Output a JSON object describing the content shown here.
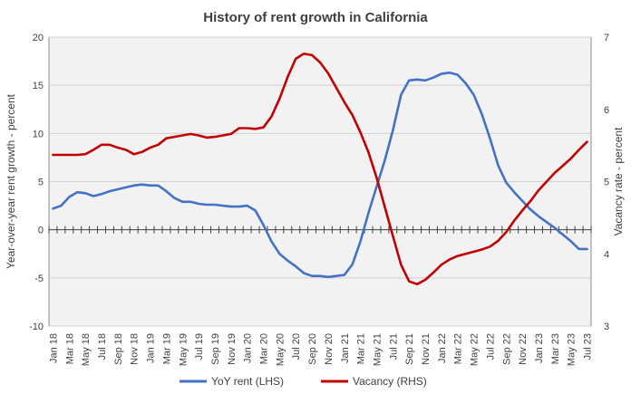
{
  "chart_data": {
    "type": "line",
    "title": "History of rent growth in California",
    "ylabel": "Year-over-year rent growth - percent",
    "y2label": "Vacancy rate - percent",
    "ylim": [
      -10,
      20
    ],
    "y2lim": [
      3,
      7
    ],
    "yticks": [
      "20",
      "15",
      "10",
      "5",
      "0",
      "-5",
      "-10"
    ],
    "y2ticks": [
      "7",
      "6",
      "5",
      "4",
      "3"
    ],
    "x": [
      "Jan 18",
      "Feb 18",
      "Mar 18",
      "Apr 18",
      "May 18",
      "Jun 18",
      "Jul 18",
      "Aug 18",
      "Sep 18",
      "Oct 18",
      "Nov 18",
      "Dec 18",
      "Jan 19",
      "Feb 19",
      "Mar 19",
      "Apr 19",
      "May 19",
      "Jun 19",
      "Jul 19",
      "Aug 19",
      "Sep 19",
      "Oct 19",
      "Nov 19",
      "Dec 19",
      "Jan 20",
      "Feb 20",
      "Mar 20",
      "Apr 20",
      "May 20",
      "Jun 20",
      "Jul 20",
      "Aug 20",
      "Sep 20",
      "Oct 20",
      "Nov 20",
      "Dec 20",
      "Jan 21",
      "Feb 21",
      "Mar 21",
      "Apr 21",
      "May 21",
      "Jun 21",
      "Jul 21",
      "Aug 21",
      "Sep 21",
      "Oct 21",
      "Nov 21",
      "Dec 21",
      "Jan 22",
      "Feb 22",
      "Mar 22",
      "Apr 22",
      "May 22",
      "Jun 22",
      "Jul 22",
      "Aug 22",
      "Sep 22",
      "Oct 22",
      "Nov 22",
      "Dec 22",
      "Jan 23",
      "Feb 23",
      "Mar 23",
      "Apr 23",
      "May 23",
      "Jun 23",
      "Jul 23"
    ],
    "xtick_labels": [
      "Jan 18",
      "Mar 18",
      "May 18",
      "Jul 18",
      "Sep 18",
      "Nov 18",
      "Jan 19",
      "Mar 19",
      "May 19",
      "Jul 19",
      "Sep 19",
      "Nov 19",
      "Jan 20",
      "Mar 20",
      "May 20",
      "Jul 20",
      "Sep 20",
      "Nov 20",
      "Jan 21",
      "Mar 21",
      "May 21",
      "Jul 21",
      "Sep 21",
      "Nov 21",
      "Jan 22",
      "Mar 22",
      "May 22",
      "Jul 22",
      "Sep 22",
      "Nov 22",
      "Jan 23",
      "Mar 23",
      "May 23",
      "Jul 23"
    ],
    "series": [
      {
        "name": "YoY rent (LHS)",
        "axis": "left",
        "color": "#4472c4",
        "values": [
          2.2,
          2.5,
          3.4,
          3.9,
          3.8,
          3.5,
          3.7,
          4.0,
          4.2,
          4.4,
          4.6,
          4.7,
          4.6,
          4.6,
          4.0,
          3.3,
          2.9,
          2.9,
          2.7,
          2.6,
          2.6,
          2.5,
          2.4,
          2.4,
          2.5,
          2.0,
          0.5,
          -1.2,
          -2.5,
          -3.2,
          -3.8,
          -4.5,
          -4.8,
          -4.8,
          -4.9,
          -4.8,
          -4.7,
          -3.6,
          -1.2,
          1.8,
          4.5,
          7.2,
          10.3,
          14.0,
          15.5,
          15.6,
          15.5,
          15.8,
          16.2,
          16.3,
          16.1,
          15.2,
          14.0,
          12.0,
          9.5,
          6.7,
          4.9,
          3.9,
          3.0,
          2.1,
          1.4,
          0.8,
          0.2,
          -0.5,
          -1.2,
          -2.0,
          -2.0
        ]
      },
      {
        "name": "Vacancy (RHS)",
        "axis": "right",
        "color": "#c00000",
        "values": [
          5.37,
          5.37,
          5.37,
          5.37,
          5.38,
          5.44,
          5.51,
          5.51,
          5.47,
          5.44,
          5.38,
          5.41,
          5.47,
          5.51,
          5.6,
          5.62,
          5.64,
          5.66,
          5.64,
          5.61,
          5.62,
          5.64,
          5.66,
          5.74,
          5.74,
          5.73,
          5.75,
          5.9,
          6.15,
          6.45,
          6.7,
          6.77,
          6.75,
          6.65,
          6.5,
          6.3,
          6.1,
          5.92,
          5.68,
          5.4,
          5.05,
          4.65,
          4.25,
          3.85,
          3.62,
          3.58,
          3.64,
          3.74,
          3.85,
          3.92,
          3.97,
          4.0,
          4.03,
          4.06,
          4.1,
          4.18,
          4.3,
          4.46,
          4.6,
          4.73,
          4.88,
          5.0,
          5.12,
          5.22,
          5.32,
          5.44,
          5.55
        ]
      }
    ]
  }
}
